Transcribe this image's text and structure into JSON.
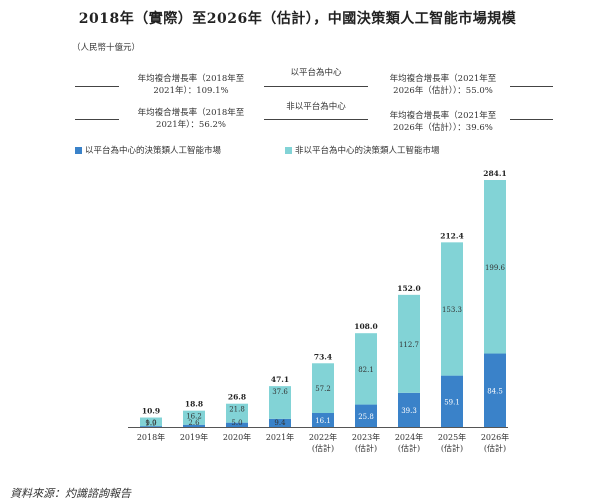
{
  "title": "2018年（實際）至2026年（估計），中國決策類人工智能市場規模",
  "unit": "（人民幣十億元）",
  "cagr": {
    "platform_header": "以平台為中心",
    "nonplatform_header": "非以平台為中心",
    "platform_hist": "年均複合增長率（2018年至2021年）：109.1%",
    "platform_hist_l1": "年均複合增長率（2018年至",
    "platform_hist_l2": "2021年）：109.1%",
    "platform_fcst_l1": "年均複合增長率（2021年至",
    "platform_fcst_l2": "2026年（估計））：55.0%",
    "nonplatform_hist_l1": "年均複合增長率（2018年至",
    "nonplatform_hist_l2": "2021年）：56.2%",
    "nonplatform_fcst_l1": "年均複合增長率（2021年至",
    "nonplatform_fcst_l2": "2026年（估計））：39.6%"
  },
  "legend": {
    "platform": "以平台為中心的決策類人工智能市場",
    "nonplatform": "非以平台為中心的決策類人工智能市場"
  },
  "colors": {
    "platform": "#3a82c9",
    "nonplatform": "#82d3d6",
    "axis": "#555555",
    "text": "#222222"
  },
  "source": "資料來源：灼識諮詢報告",
  "chart_data": {
    "type": "bar",
    "stacked": true,
    "categories": [
      "2018年",
      "2019年",
      "2020年",
      "2021年",
      "2022年\n(估計)",
      "2023年\n(估計)",
      "2024年\n(估計)",
      "2025年\n(估計)",
      "2026年\n(估計)"
    ],
    "category_lines": [
      [
        "2018年"
      ],
      [
        "2019年"
      ],
      [
        "2020年"
      ],
      [
        "2021年"
      ],
      [
        "2022年",
        "(估計)"
      ],
      [
        "2023年",
        "(估計)"
      ],
      [
        "2024年",
        "(估計)"
      ],
      [
        "2025年",
        "(估計)"
      ],
      [
        "2026年",
        "(估計)"
      ]
    ],
    "series": [
      {
        "name": "以平台為中心的決策類人工智能市場",
        "values": [
          1.0,
          2.6,
          5.0,
          9.4,
          16.1,
          25.8,
          39.3,
          59.1,
          84.5
        ]
      },
      {
        "name": "非以平台為中心的決策類人工智能市場",
        "values": [
          9.9,
          16.2,
          21.8,
          37.6,
          57.2,
          82.1,
          112.7,
          153.3,
          199.6
        ]
      }
    ],
    "totals": [
      10.9,
      18.8,
      26.8,
      47.1,
      73.4,
      108.0,
      152.0,
      212.4,
      284.1
    ],
    "labels_platform": [
      "1.0",
      "2.6",
      "5.0",
      "9.4",
      "16.1",
      "25.8",
      "39.3",
      "59.1",
      "84.5"
    ],
    "labels_nonplatform": [
      "9.9",
      "16.2",
      "21.8",
      "37.6",
      "57.2",
      "82.1",
      "112.7",
      "153.3",
      "199.6"
    ],
    "labels_total": [
      "10.9",
      "18.8",
      "26.8",
      "47.1",
      "73.4",
      "108.0",
      "152.0",
      "212.4",
      "284.1"
    ],
    "ylim": [
      0,
      284.1
    ]
  }
}
